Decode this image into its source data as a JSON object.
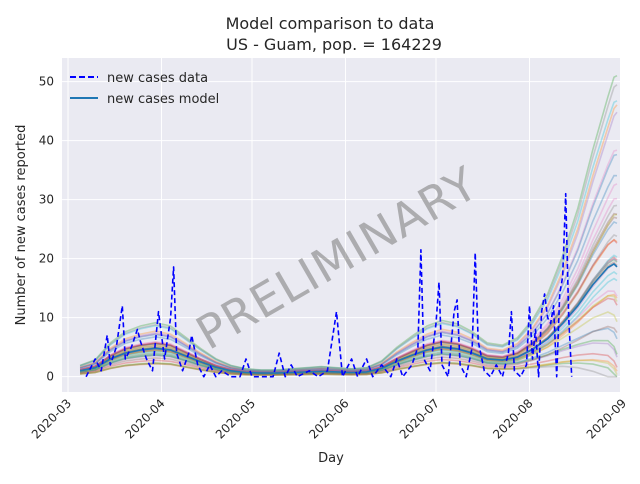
{
  "chart_data": {
    "type": "line",
    "title": "Model comparison to data",
    "subtitle": "US - Guam, pop. = 164229",
    "xlabel": "Day",
    "ylabel": "Number of new cases reported",
    "xlim": [
      "2020-02-28",
      "2020-08-31"
    ],
    "ylim": [
      -2.6,
      54
    ],
    "x_ticks": [
      "2020-03-01",
      "2020-04-01",
      "2020-05-01",
      "2020-06-01",
      "2020-07-01",
      "2020-08-01",
      "2020-09-01"
    ],
    "x_tick_labels": [
      "2020-03",
      "2020-04",
      "2020-05",
      "2020-06",
      "2020-07",
      "2020-08",
      "2020-09"
    ],
    "y_ticks": [
      0,
      10,
      20,
      30,
      40,
      50
    ],
    "grid": true,
    "legend": "top-left",
    "watermark": "PRELIMINARY",
    "series": [
      {
        "name": "new cases data",
        "style": "dashed",
        "color": "#0000ff",
        "points": [
          [
            "2020-03-07",
            0
          ],
          [
            "2020-03-10",
            3
          ],
          [
            "2020-03-12",
            1
          ],
          [
            "2020-03-14",
            7
          ],
          [
            "2020-03-15",
            2
          ],
          [
            "2020-03-17",
            5
          ],
          [
            "2020-03-19",
            12
          ],
          [
            "2020-03-20",
            3
          ],
          [
            "2020-03-22",
            5
          ],
          [
            "2020-03-24",
            8
          ],
          [
            "2020-03-25",
            6
          ],
          [
            "2020-03-27",
            3
          ],
          [
            "2020-03-29",
            1
          ],
          [
            "2020-03-31",
            11
          ],
          [
            "2020-04-01",
            7
          ],
          [
            "2020-04-02",
            3
          ],
          [
            "2020-04-04",
            10
          ],
          [
            "2020-04-05",
            18.6
          ],
          [
            "2020-04-06",
            4
          ],
          [
            "2020-04-08",
            1
          ],
          [
            "2020-04-10",
            4
          ],
          [
            "2020-04-11",
            7
          ],
          [
            "2020-04-13",
            2
          ],
          [
            "2020-04-15",
            0
          ],
          [
            "2020-04-17",
            2
          ],
          [
            "2020-04-19",
            0
          ],
          [
            "2020-04-21",
            1
          ],
          [
            "2020-04-24",
            0
          ],
          [
            "2020-04-27",
            0
          ],
          [
            "2020-04-29",
            3
          ],
          [
            "2020-05-01",
            0
          ],
          [
            "2020-05-05",
            0
          ],
          [
            "2020-05-08",
            0
          ],
          [
            "2020-05-10",
            4
          ],
          [
            "2020-05-12",
            0
          ],
          [
            "2020-05-14",
            2
          ],
          [
            "2020-05-16",
            0
          ],
          [
            "2020-05-20",
            1
          ],
          [
            "2020-05-23",
            0
          ],
          [
            "2020-05-26",
            1
          ],
          [
            "2020-05-29",
            11
          ],
          [
            "2020-05-31",
            0
          ],
          [
            "2020-06-03",
            3
          ],
          [
            "2020-06-05",
            0
          ],
          [
            "2020-06-08",
            3
          ],
          [
            "2020-06-10",
            0
          ],
          [
            "2020-06-13",
            2
          ],
          [
            "2020-06-16",
            0
          ],
          [
            "2020-06-18",
            3
          ],
          [
            "2020-06-20",
            0
          ],
          [
            "2020-06-23",
            2
          ],
          [
            "2020-06-25",
            5
          ],
          [
            "2020-06-26",
            21.5
          ],
          [
            "2020-06-27",
            3
          ],
          [
            "2020-06-29",
            1
          ],
          [
            "2020-07-01",
            9
          ],
          [
            "2020-07-02",
            16
          ],
          [
            "2020-07-03",
            2
          ],
          [
            "2020-07-05",
            0
          ],
          [
            "2020-07-07",
            11
          ],
          [
            "2020-07-08",
            13
          ],
          [
            "2020-07-09",
            2
          ],
          [
            "2020-07-11",
            0
          ],
          [
            "2020-07-13",
            5
          ],
          [
            "2020-07-14",
            21
          ],
          [
            "2020-07-15",
            6
          ],
          [
            "2020-07-17",
            1
          ],
          [
            "2020-07-19",
            0
          ],
          [
            "2020-07-21",
            2
          ],
          [
            "2020-07-23",
            0
          ],
          [
            "2020-07-25",
            4
          ],
          [
            "2020-07-26",
            11
          ],
          [
            "2020-07-27",
            1
          ],
          [
            "2020-07-29",
            0
          ],
          [
            "2020-07-31",
            2
          ],
          [
            "2020-08-01",
            12
          ],
          [
            "2020-08-02",
            3
          ],
          [
            "2020-08-03",
            8
          ],
          [
            "2020-08-04",
            0
          ],
          [
            "2020-08-05",
            11
          ],
          [
            "2020-08-06",
            14
          ],
          [
            "2020-08-07",
            10
          ],
          [
            "2020-08-08",
            9
          ],
          [
            "2020-08-09",
            12
          ],
          [
            "2020-08-10",
            0
          ],
          [
            "2020-08-11",
            14
          ],
          [
            "2020-08-12",
            17
          ],
          [
            "2020-08-13",
            31
          ],
          [
            "2020-08-14",
            10
          ],
          [
            "2020-08-15",
            0
          ]
        ]
      },
      {
        "name": "new cases model",
        "style": "solid",
        "color": "#1f77b4",
        "points": [
          [
            "2020-03-05",
            1
          ],
          [
            "2020-03-10",
            1.5
          ],
          [
            "2020-03-15",
            3
          ],
          [
            "2020-03-20",
            4
          ],
          [
            "2020-03-25",
            4.5
          ],
          [
            "2020-03-30",
            4.8
          ],
          [
            "2020-04-04",
            4.5
          ],
          [
            "2020-04-09",
            3.5
          ],
          [
            "2020-04-14",
            2.5
          ],
          [
            "2020-04-19",
            1.6
          ],
          [
            "2020-04-24",
            1
          ],
          [
            "2020-04-29",
            0.7
          ],
          [
            "2020-05-04",
            0.6
          ],
          [
            "2020-05-09",
            0.6
          ],
          [
            "2020-05-14",
            0.7
          ],
          [
            "2020-05-19",
            0.8
          ],
          [
            "2020-05-24",
            0.9
          ],
          [
            "2020-05-29",
            0.8
          ],
          [
            "2020-06-03",
            0.7
          ],
          [
            "2020-06-08",
            0.8
          ],
          [
            "2020-06-13",
            1.4
          ],
          [
            "2020-06-18",
            2.6
          ],
          [
            "2020-06-23",
            3.6
          ],
          [
            "2020-06-28",
            4.5
          ],
          [
            "2020-07-03",
            5
          ],
          [
            "2020-07-08",
            4.7
          ],
          [
            "2020-07-13",
            4
          ],
          [
            "2020-07-18",
            3
          ],
          [
            "2020-07-23",
            2.8
          ],
          [
            "2020-07-28",
            3.3
          ],
          [
            "2020-08-02",
            4.6
          ],
          [
            "2020-08-07",
            6.4
          ],
          [
            "2020-08-12",
            9
          ],
          [
            "2020-08-17",
            12
          ],
          [
            "2020-08-22",
            15.6
          ],
          [
            "2020-08-27",
            18.5
          ],
          [
            "2020-08-29",
            19.1
          ],
          [
            "2020-08-30",
            18.6
          ]
        ]
      }
    ]
  }
}
